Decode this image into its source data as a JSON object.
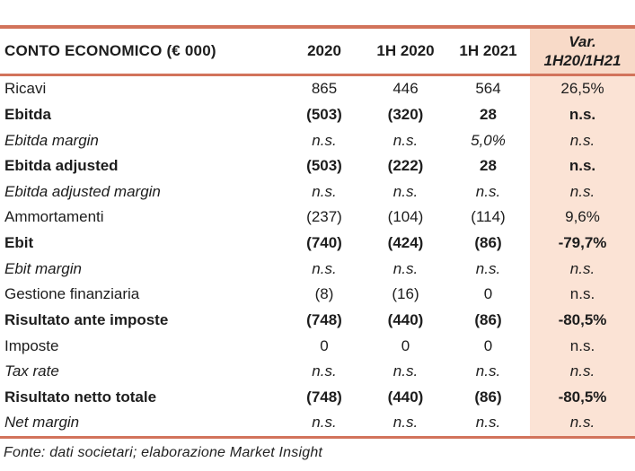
{
  "table": {
    "title": "CONTO ECONOMICO (€ 000)",
    "header": {
      "columns": [
        "2020",
        "1H 2020",
        "1H 2021"
      ],
      "var_line1": "Var.",
      "var_line2": "1H20/1H21"
    },
    "rows": [
      {
        "label": "Ricavi",
        "style": "regular",
        "values": [
          "865",
          "446",
          "564",
          "26,5%"
        ]
      },
      {
        "label": "Ebitda",
        "style": "bold",
        "values": [
          "(503)",
          "(320)",
          "28",
          "n.s."
        ]
      },
      {
        "label": "Ebitda margin",
        "style": "italic",
        "values": [
          "n.s.",
          "n.s.",
          "5,0%",
          "n.s."
        ]
      },
      {
        "label": "Ebitda adjusted",
        "style": "bold",
        "values": [
          "(503)",
          "(222)",
          "28",
          "n.s."
        ]
      },
      {
        "label": "Ebitda adjusted margin",
        "style": "italic",
        "values": [
          "n.s.",
          "n.s.",
          "n.s.",
          "n.s."
        ]
      },
      {
        "label": "Ammortamenti",
        "style": "regular",
        "values": [
          "(237)",
          "(104)",
          "(114)",
          "9,6%"
        ]
      },
      {
        "label": "Ebit",
        "style": "bold",
        "values": [
          "(740)",
          "(424)",
          "(86)",
          "-79,7%"
        ]
      },
      {
        "label": "Ebit margin",
        "style": "italic",
        "values": [
          "n.s.",
          "n.s.",
          "n.s.",
          "n.s."
        ]
      },
      {
        "label": "Gestione finanziaria",
        "style": "regular",
        "values": [
          "(8)",
          "(16)",
          "0",
          "n.s."
        ]
      },
      {
        "label": "Risultato ante imposte",
        "style": "bold",
        "values": [
          "(748)",
          "(440)",
          "(86)",
          "-80,5%"
        ]
      },
      {
        "label": "Imposte",
        "style": "regular",
        "values": [
          "0",
          "0",
          "0",
          "n.s."
        ]
      },
      {
        "label": "Tax rate",
        "style": "italic",
        "values": [
          "n.s.",
          "n.s.",
          "n.s.",
          "n.s."
        ]
      },
      {
        "label": "Risultato netto totale",
        "style": "bold",
        "values": [
          "(748)",
          "(440)",
          "(86)",
          "-80,5%"
        ]
      },
      {
        "label": "Net margin",
        "style": "italic",
        "values": [
          "n.s.",
          "n.s.",
          "n.s.",
          "n.s."
        ]
      }
    ],
    "footer": "Fonte: dati societari; elaborazione Market Insight"
  },
  "colors": {
    "border": "#D2735B",
    "highlight_header_bg": "#F8DAC8",
    "highlight_column_bg": "#FBE3D5",
    "text": "#1D1D1D"
  }
}
